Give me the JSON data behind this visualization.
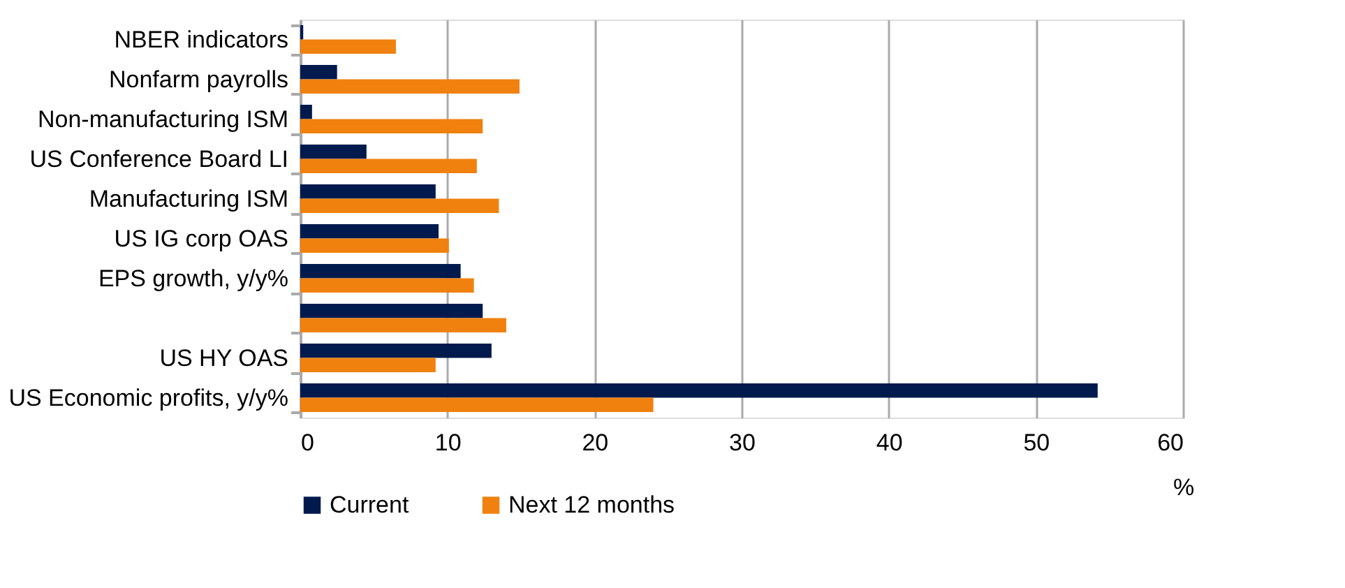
{
  "chart_data": {
    "type": "bar",
    "orientation": "horizontal",
    "categories": [
      "NBER indicators",
      "Nonfarm payrolls",
      "Non-manufacturing ISM",
      "US Conference Board LI",
      "Manufacturing ISM",
      "US IG corp OAS",
      "EPS growth, y/y%",
      null,
      "US HY OAS",
      "US Economic profits, y/y%"
    ],
    "series": [
      {
        "name": "Current",
        "color": "#001a4d",
        "values": [
          0.2,
          2.5,
          0.8,
          4.5,
          9.2,
          9.4,
          10.9,
          12.4,
          13.0,
          54.2
        ]
      },
      {
        "name": "Next 12 months",
        "color": "#f0810f",
        "values": [
          6.5,
          14.9,
          12.4,
          12.0,
          13.5,
          10.1,
          11.8,
          14.0,
          9.2,
          24.0
        ]
      }
    ],
    "xlabel": "%",
    "xlim": [
      0,
      60
    ],
    "xticks": [
      0,
      10,
      20,
      30,
      40,
      50,
      60
    ],
    "grid": "x",
    "legend": "bottom"
  }
}
